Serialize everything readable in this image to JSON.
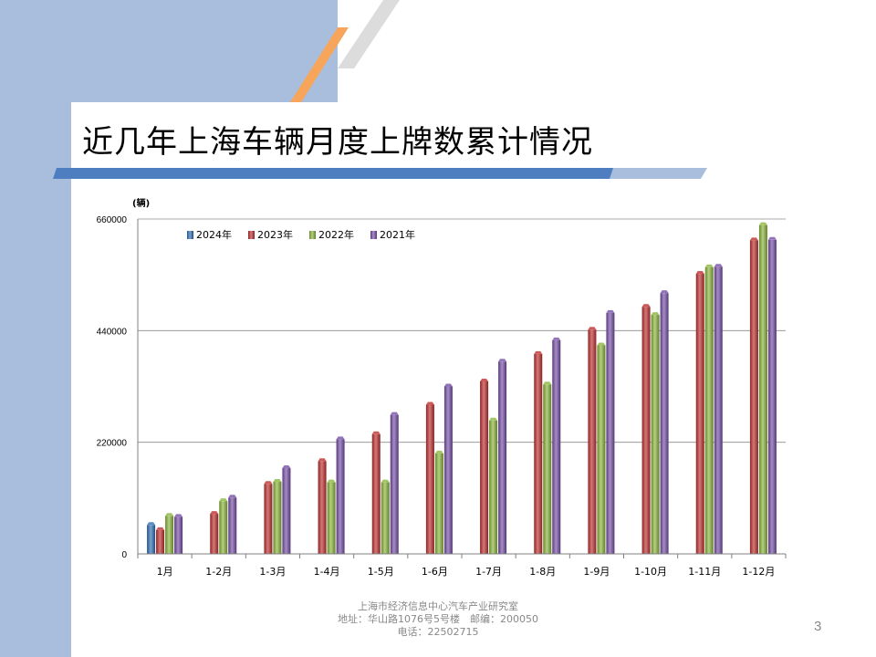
{
  "slide": {
    "title": "近几年上海车辆月度上牌数累计情况",
    "page_number": "3"
  },
  "footer": {
    "line1": "上海市经济信息中心汽车产业研究室",
    "line2": "地址：华山路1076号5号楼　邮编：200050",
    "line3": "电话：22502715"
  },
  "colors": {
    "background_accent": "#a9bedc",
    "title_bar_blue": "#4f7ec0",
    "stripe_orange": "#f6a55a",
    "stripe_grey": "#d0d0d0"
  },
  "chart_data": {
    "type": "bar",
    "title": "",
    "unit_label": "(辆)",
    "ylim": [
      0,
      660000
    ],
    "yticks": [
      0,
      220000,
      440000,
      660000
    ],
    "grid": "horizontal",
    "legend_position": "top-left",
    "categories": [
      "1月",
      "1-2月",
      "1-3月",
      "1-4月",
      "1-5月",
      "1-6月",
      "1-7月",
      "1-8月",
      "1-9月",
      "1-10月",
      "1-11月",
      "1-12月"
    ],
    "series": [
      {
        "name": "2024年",
        "color": "#2f6eb5",
        "values": [
          57000,
          null,
          null,
          null,
          null,
          null,
          null,
          null,
          null,
          null,
          null,
          null
        ]
      },
      {
        "name": "2023年",
        "color": "#c03030",
        "values": [
          47000,
          79000,
          138000,
          183000,
          236000,
          294000,
          340000,
          394000,
          442000,
          487000,
          552000,
          618000
        ]
      },
      {
        "name": "2022年",
        "color": "#8cb63c",
        "values": [
          75000,
          104000,
          142000,
          141000,
          141000,
          198000,
          263000,
          334000,
          411000,
          471000,
          565000,
          648000
        ]
      },
      {
        "name": "2021年",
        "color": "#7750a8",
        "values": [
          73000,
          111000,
          169000,
          226000,
          274000,
          330000,
          379000,
          421000,
          475000,
          514000,
          566000,
          619000
        ]
      }
    ]
  }
}
